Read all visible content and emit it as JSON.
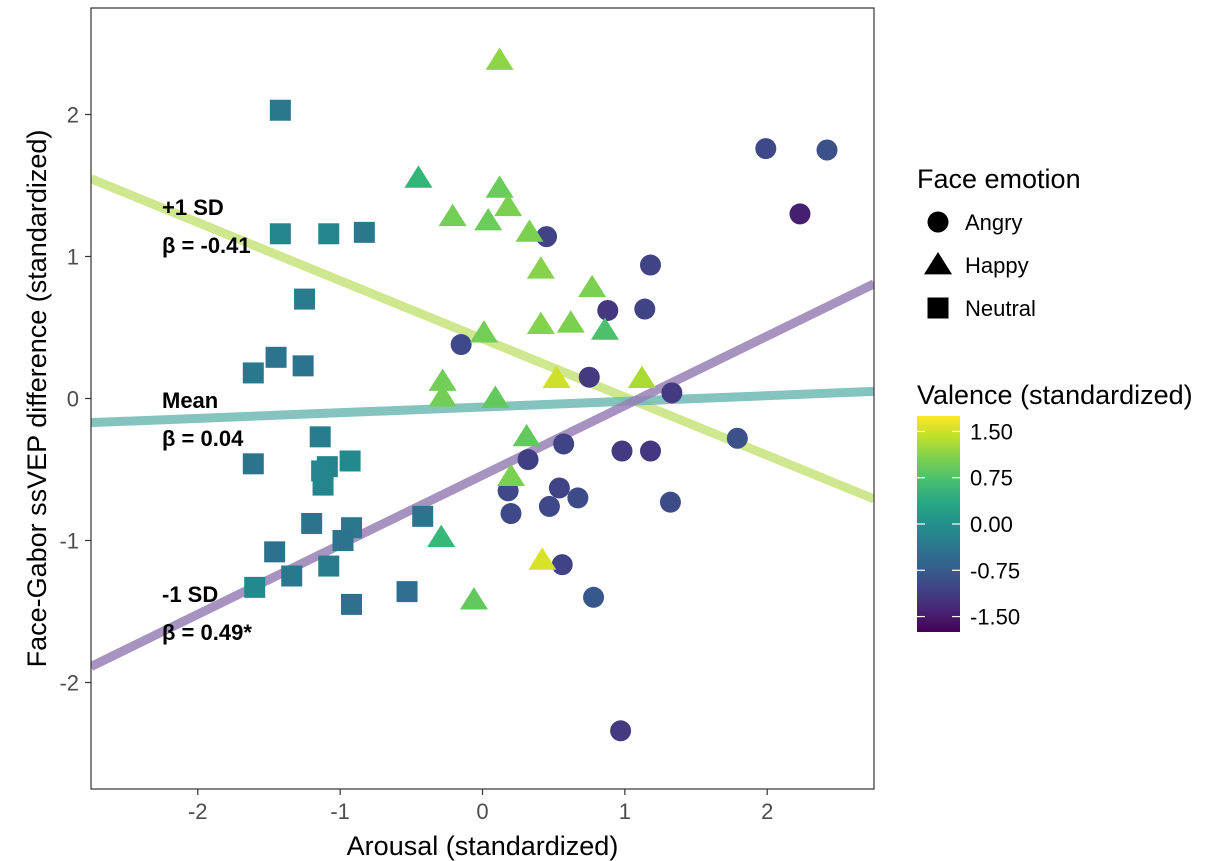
{
  "chart_data": {
    "type": "scatter",
    "xlabel": "Arousal (standardized)",
    "ylabel": "Face-Gabor ssVEP difference (standardized)",
    "xlim": [
      -2.75,
      2.75
    ],
    "ylim": [
      -2.75,
      2.75
    ],
    "x_ticks": [
      -2,
      -1,
      0,
      1,
      2
    ],
    "y_ticks": [
      -2,
      -1,
      0,
      1,
      2
    ],
    "x_tick_labels": [
      "-2",
      "-1",
      "0",
      "1",
      "2"
    ],
    "y_tick_labels": [
      "-2",
      "-1",
      "0",
      "1",
      "2"
    ],
    "grid": false,
    "shape_legend": {
      "title": "Face emotion",
      "items": [
        {
          "label": "Angry",
          "shape": "circle"
        },
        {
          "label": "Happy",
          "shape": "triangle"
        },
        {
          "label": "Neutral",
          "shape": "square"
        }
      ]
    },
    "color_legend": {
      "title": "Valence (standardized)",
      "range": [
        -1.75,
        1.75
      ],
      "ticks": [
        1.5,
        0.75,
        0.0,
        -0.75,
        -1.5
      ],
      "tick_labels": [
        "1.50",
        "0.75",
        "0.00",
        "-0.75",
        "-1.50"
      ],
      "colorscale": "viridis"
    },
    "regression_lines": [
      {
        "label": "+1 SD",
        "beta_label": "β = -0.41",
        "intercept": 0.42,
        "slope": -0.41,
        "color": "#c7e37a"
      },
      {
        "label": "Mean",
        "beta_label": "β = 0.04",
        "intercept": -0.06,
        "slope": 0.04,
        "color": "#6fb8b3"
      },
      {
        "label": "-1 SD",
        "beta_label": "β = 0.49*",
        "intercept": -0.54,
        "slope": 0.49,
        "color": "#9780b5"
      }
    ],
    "points": [
      {
        "emotion": "Angry",
        "x": 1.99,
        "y": 1.76,
        "valence": -1.0
      },
      {
        "emotion": "Angry",
        "x": 2.42,
        "y": 1.75,
        "valence": -0.9
      },
      {
        "emotion": "Angry",
        "x": 2.23,
        "y": 1.3,
        "valence": -1.45
      },
      {
        "emotion": "Angry",
        "x": 0.45,
        "y": 1.14,
        "valence": -1.05
      },
      {
        "emotion": "Angry",
        "x": 1.18,
        "y": 0.94,
        "valence": -1.05
      },
      {
        "emotion": "Angry",
        "x": 0.88,
        "y": 0.62,
        "valence": -1.2
      },
      {
        "emotion": "Angry",
        "x": 1.14,
        "y": 0.63,
        "valence": -1.05
      },
      {
        "emotion": "Angry",
        "x": -0.15,
        "y": 0.38,
        "valence": -1.0
      },
      {
        "emotion": "Angry",
        "x": 0.75,
        "y": 0.15,
        "valence": -1.15
      },
      {
        "emotion": "Angry",
        "x": 1.33,
        "y": 0.04,
        "valence": -1.15
      },
      {
        "emotion": "Angry",
        "x": 0.57,
        "y": -0.32,
        "valence": -1.05
      },
      {
        "emotion": "Angry",
        "x": 0.98,
        "y": -0.37,
        "valence": -1.15
      },
      {
        "emotion": "Angry",
        "x": 1.18,
        "y": -0.37,
        "valence": -1.2
      },
      {
        "emotion": "Angry",
        "x": 1.79,
        "y": -0.28,
        "valence": -0.9
      },
      {
        "emotion": "Angry",
        "x": 0.32,
        "y": -0.43,
        "valence": -1.1
      },
      {
        "emotion": "Angry",
        "x": 0.18,
        "y": -0.65,
        "valence": -1.0
      },
      {
        "emotion": "Angry",
        "x": 0.54,
        "y": -0.63,
        "valence": -1.05
      },
      {
        "emotion": "Angry",
        "x": 0.2,
        "y": -0.81,
        "valence": -1.0
      },
      {
        "emotion": "Angry",
        "x": 0.47,
        "y": -0.76,
        "valence": -1.0
      },
      {
        "emotion": "Angry",
        "x": 0.67,
        "y": -0.7,
        "valence": -0.95
      },
      {
        "emotion": "Angry",
        "x": 1.32,
        "y": -0.73,
        "valence": -0.95
      },
      {
        "emotion": "Angry",
        "x": 0.56,
        "y": -1.17,
        "valence": -1.05
      },
      {
        "emotion": "Angry",
        "x": 0.78,
        "y": -1.4,
        "valence": -0.8
      },
      {
        "emotion": "Angry",
        "x": 0.97,
        "y": -2.34,
        "valence": -1.15
      },
      {
        "emotion": "Happy",
        "x": 0.12,
        "y": 2.38,
        "valence": 1.15
      },
      {
        "emotion": "Happy",
        "x": -0.45,
        "y": 1.55,
        "valence": 0.55
      },
      {
        "emotion": "Happy",
        "x": 0.12,
        "y": 1.48,
        "valence": 0.95
      },
      {
        "emotion": "Happy",
        "x": 0.18,
        "y": 1.35,
        "valence": 1.05
      },
      {
        "emotion": "Happy",
        "x": -0.21,
        "y": 1.28,
        "valence": 1.0
      },
      {
        "emotion": "Happy",
        "x": 0.04,
        "y": 1.25,
        "valence": 0.95
      },
      {
        "emotion": "Happy",
        "x": 0.33,
        "y": 1.17,
        "valence": 1.05
      },
      {
        "emotion": "Happy",
        "x": 0.41,
        "y": 0.91,
        "valence": 1.1
      },
      {
        "emotion": "Happy",
        "x": 0.77,
        "y": 0.78,
        "valence": 1.05
      },
      {
        "emotion": "Happy",
        "x": 0.41,
        "y": 0.52,
        "valence": 1.1
      },
      {
        "emotion": "Happy",
        "x": 0.62,
        "y": 0.53,
        "valence": 1.05
      },
      {
        "emotion": "Happy",
        "x": 0.86,
        "y": 0.48,
        "valence": 0.75
      },
      {
        "emotion": "Happy",
        "x": 0.01,
        "y": 0.46,
        "valence": 1.0
      },
      {
        "emotion": "Happy",
        "x": 0.52,
        "y": 0.14,
        "valence": 1.5
      },
      {
        "emotion": "Happy",
        "x": 1.12,
        "y": 0.14,
        "valence": 1.3
      },
      {
        "emotion": "Happy",
        "x": -0.28,
        "y": 0.12,
        "valence": 1.0
      },
      {
        "emotion": "Happy",
        "x": -0.28,
        "y": 0.01,
        "valence": 1.0
      },
      {
        "emotion": "Happy",
        "x": 0.09,
        "y": 0.0,
        "valence": 0.9
      },
      {
        "emotion": "Happy",
        "x": 0.31,
        "y": -0.27,
        "valence": 0.9
      },
      {
        "emotion": "Happy",
        "x": 0.2,
        "y": -0.55,
        "valence": 1.05
      },
      {
        "emotion": "Happy",
        "x": -0.29,
        "y": -0.98,
        "valence": 0.6
      },
      {
        "emotion": "Happy",
        "x": 0.42,
        "y": -1.14,
        "valence": 1.55
      },
      {
        "emotion": "Happy",
        "x": -0.06,
        "y": -1.42,
        "valence": 0.9
      },
      {
        "emotion": "Neutral",
        "x": -1.42,
        "y": 2.03,
        "valence": -0.35
      },
      {
        "emotion": "Neutral",
        "x": -1.42,
        "y": 1.16,
        "valence": -0.15
      },
      {
        "emotion": "Neutral",
        "x": -1.08,
        "y": 1.16,
        "valence": -0.15
      },
      {
        "emotion": "Neutral",
        "x": -0.83,
        "y": 1.17,
        "valence": -0.35
      },
      {
        "emotion": "Neutral",
        "x": -1.25,
        "y": 0.7,
        "valence": -0.3
      },
      {
        "emotion": "Neutral",
        "x": -1.45,
        "y": 0.29,
        "valence": -0.4
      },
      {
        "emotion": "Neutral",
        "x": -1.26,
        "y": 0.23,
        "valence": -0.4
      },
      {
        "emotion": "Neutral",
        "x": -1.61,
        "y": 0.18,
        "valence": -0.35
      },
      {
        "emotion": "Neutral",
        "x": -1.14,
        "y": -0.27,
        "valence": -0.3
      },
      {
        "emotion": "Neutral",
        "x": -1.61,
        "y": -0.46,
        "valence": -0.4
      },
      {
        "emotion": "Neutral",
        "x": -0.93,
        "y": -0.44,
        "valence": -0.1
      },
      {
        "emotion": "Neutral",
        "x": -1.09,
        "y": -0.48,
        "valence": -0.2
      },
      {
        "emotion": "Neutral",
        "x": -1.13,
        "y": -0.51,
        "valence": -0.15
      },
      {
        "emotion": "Neutral",
        "x": -1.12,
        "y": -0.61,
        "valence": -0.15
      },
      {
        "emotion": "Neutral",
        "x": -1.2,
        "y": -0.88,
        "valence": -0.4
      },
      {
        "emotion": "Neutral",
        "x": -0.92,
        "y": -0.91,
        "valence": -0.35
      },
      {
        "emotion": "Neutral",
        "x": -0.42,
        "y": -0.83,
        "valence": -0.4
      },
      {
        "emotion": "Neutral",
        "x": -0.98,
        "y": -1.0,
        "valence": -0.4
      },
      {
        "emotion": "Neutral",
        "x": -1.46,
        "y": -1.08,
        "valence": -0.45
      },
      {
        "emotion": "Neutral",
        "x": -1.08,
        "y": -1.18,
        "valence": -0.3
      },
      {
        "emotion": "Neutral",
        "x": -1.34,
        "y": -1.25,
        "valence": -0.35
      },
      {
        "emotion": "Neutral",
        "x": -1.6,
        "y": -1.33,
        "valence": -0.1
      },
      {
        "emotion": "Neutral",
        "x": -0.53,
        "y": -1.36,
        "valence": -0.5
      },
      {
        "emotion": "Neutral",
        "x": -0.92,
        "y": -1.45,
        "valence": -0.45
      }
    ]
  }
}
